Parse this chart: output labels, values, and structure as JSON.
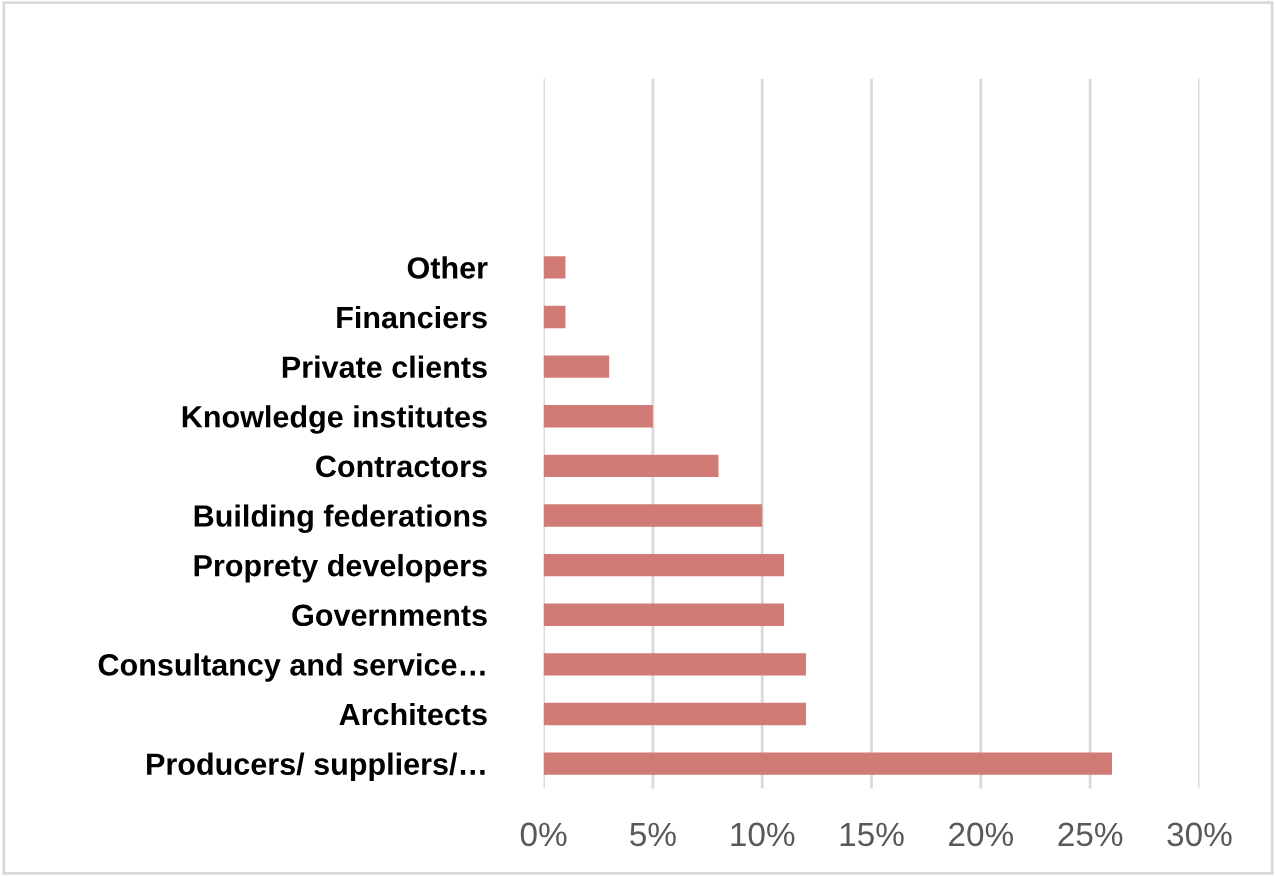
{
  "chart_data": {
    "type": "bar",
    "orientation": "horizontal",
    "categories": [
      "Other",
      "Financiers",
      "Private clients",
      "Knowledge institutes",
      "Contractors",
      "Building federations",
      "Proprety developers",
      "Governments",
      "Consultancy and service…",
      "Architects",
      "Producers/ suppliers/…"
    ],
    "values": [
      1,
      1,
      3,
      5,
      8,
      10,
      11,
      11,
      12,
      12,
      26
    ],
    "color": "#d07b76",
    "xlim": [
      0,
      30
    ],
    "xticks": [
      {
        "value": 0,
        "label": "0%"
      },
      {
        "value": 5,
        "label": "5%"
      },
      {
        "value": 10,
        "label": "10%"
      },
      {
        "value": 15,
        "label": "15%"
      },
      {
        "value": 20,
        "label": "20%"
      },
      {
        "value": 25,
        "label": "25%"
      },
      {
        "value": 30,
        "label": "30%"
      }
    ],
    "grid": "x",
    "legend": false
  }
}
